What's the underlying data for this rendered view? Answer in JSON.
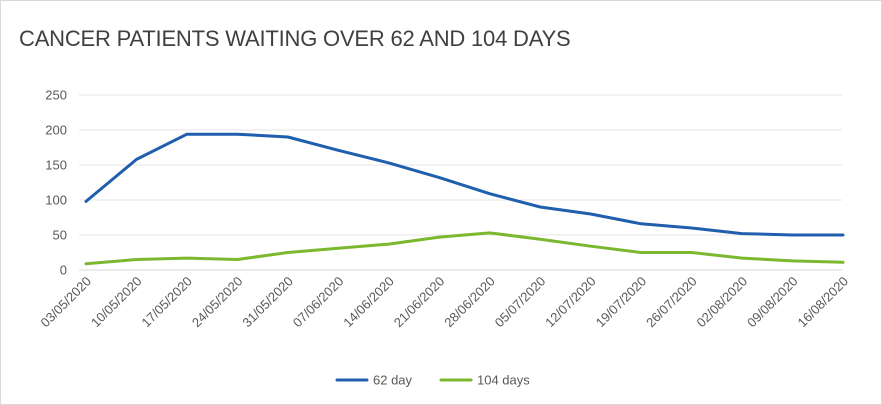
{
  "chart_data": {
    "type": "line",
    "title": "CANCER PATIENTS WAITING OVER 62 AND 104 DAYS",
    "xlabel": "",
    "ylabel": "",
    "categories": [
      "03/05/2020",
      "10/05/2020",
      "17/05/2020",
      "24/05/2020",
      "31/05/2020",
      "07/06/2020",
      "14/06/2020",
      "21/06/2020",
      "28/06/2020",
      "05/07/2020",
      "12/07/2020",
      "19/07/2020",
      "26/07/2020",
      "02/08/2020",
      "09/08/2020",
      "16/08/2020"
    ],
    "ylim": [
      0,
      250
    ],
    "yticks": [
      0,
      50,
      100,
      150,
      200,
      250
    ],
    "grid": true,
    "legend_position": "bottom",
    "series": [
      {
        "name": "62 day",
        "color": "#1f5fae",
        "values": [
          98,
          158,
          194,
          194,
          190,
          171,
          153,
          132,
          109,
          90,
          80,
          66,
          60,
          52,
          50,
          50
        ]
      },
      {
        "name": "104 days",
        "color": "#7cb82f",
        "values": [
          9,
          15,
          17,
          15,
          25,
          31,
          37,
          47,
          53,
          44,
          34,
          25,
          25,
          17,
          13,
          11
        ]
      }
    ]
  }
}
